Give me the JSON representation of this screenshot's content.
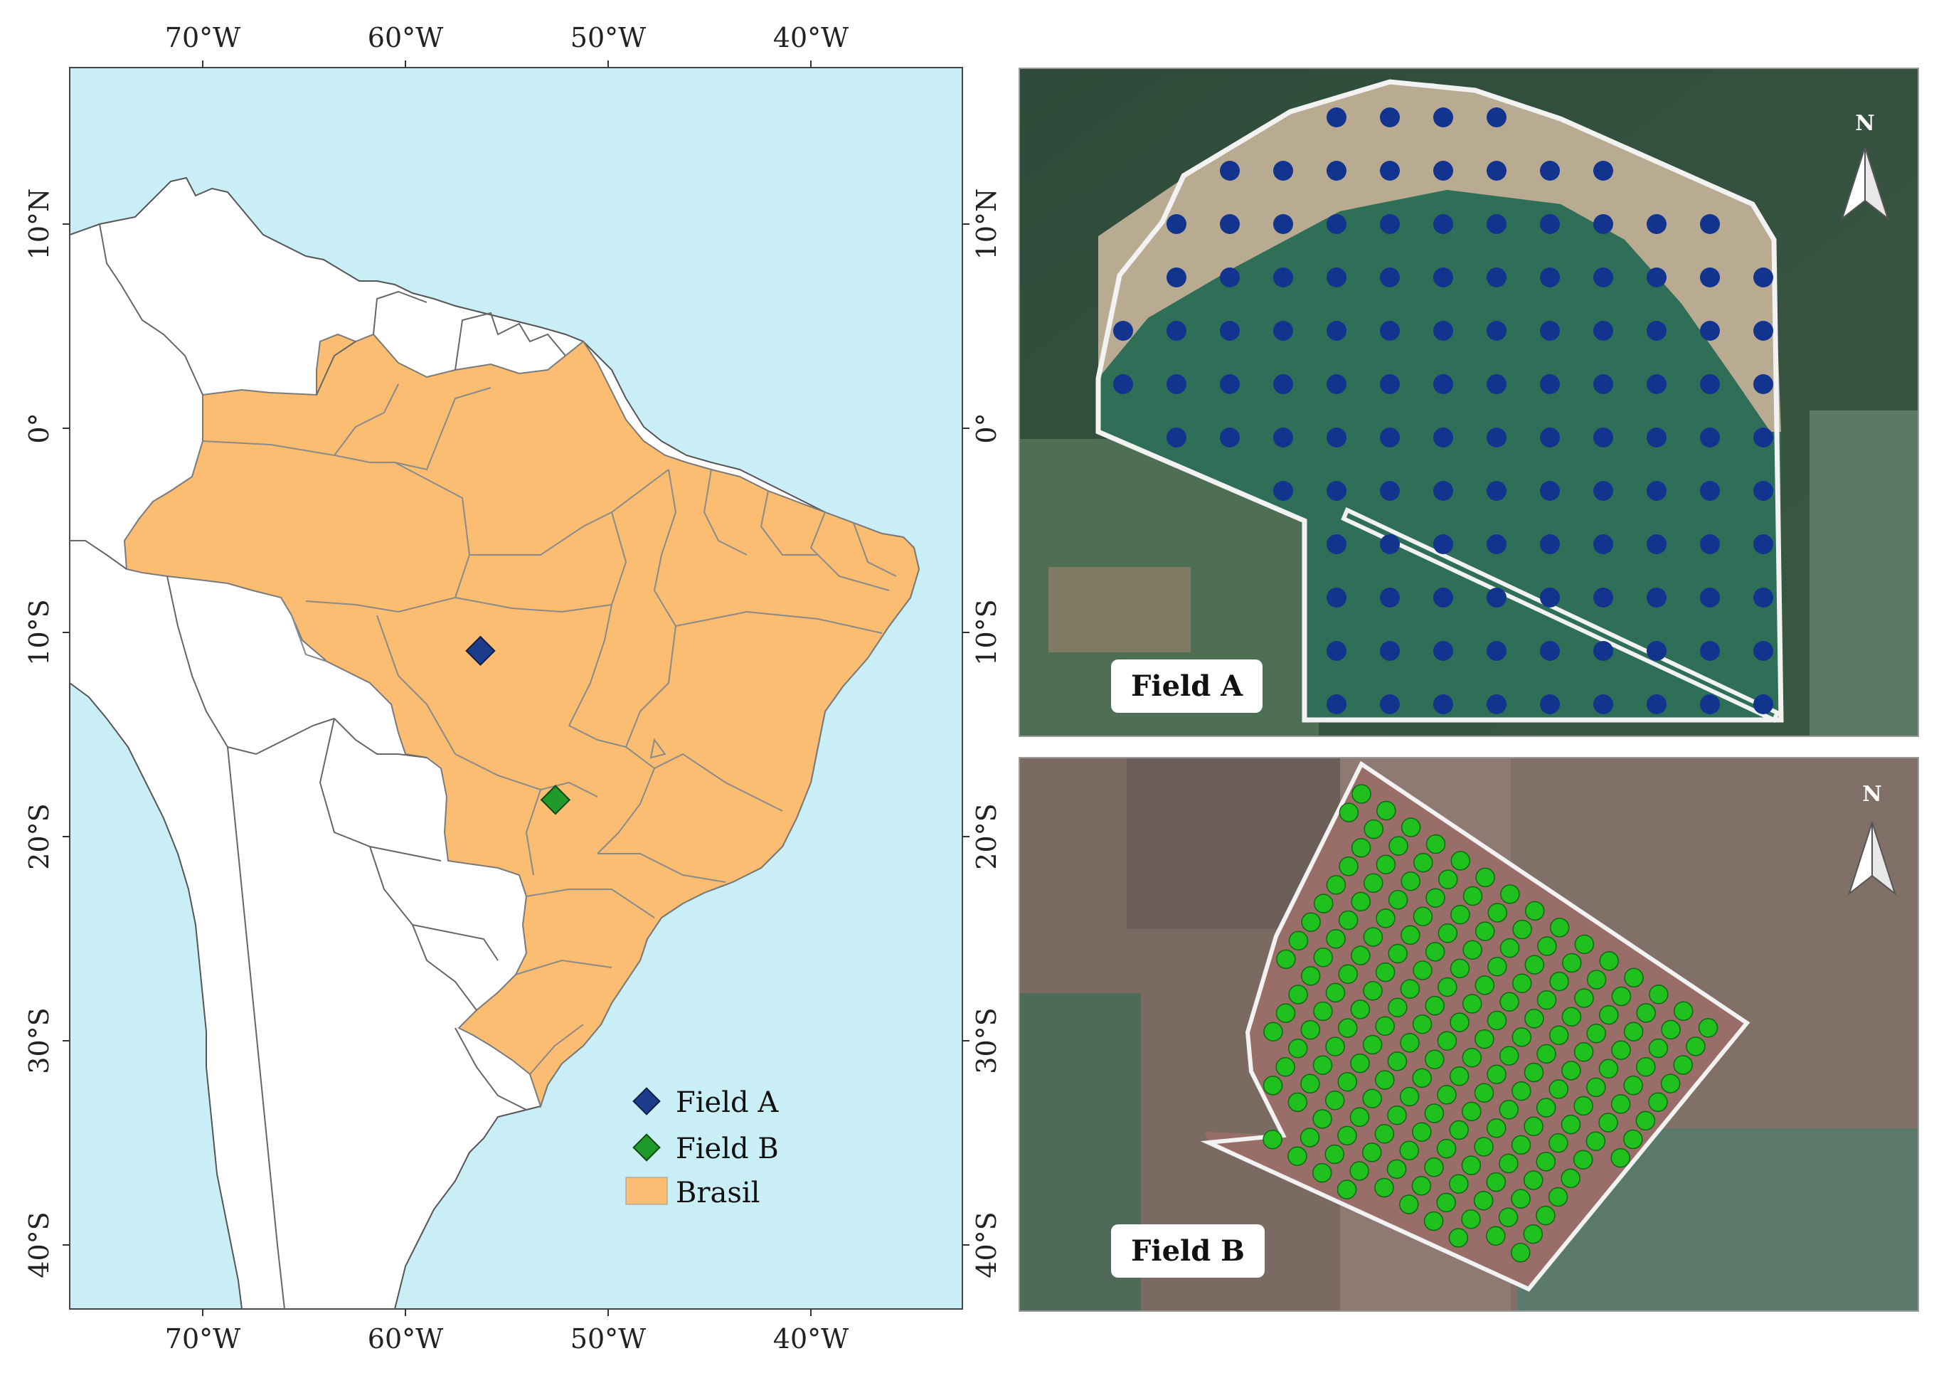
{
  "map": {
    "lon_ticks": [
      "70°W",
      "60°W",
      "50°W",
      "40°W"
    ],
    "lat_ticks": [
      "10°N",
      "0°",
      "10°S",
      "20°S",
      "30°S",
      "40°S"
    ],
    "colors": {
      "ocean": "#c9eef6",
      "land": "#ffffff",
      "brasil": "#fbbd71",
      "field_a": "#1d3c8c",
      "field_b": "#1f9a2a"
    },
    "legend": [
      {
        "label": "Field A",
        "marker": "diamond",
        "color": "#1d3c8c"
      },
      {
        "label": "Field B",
        "marker": "diamond",
        "color": "#1f9a2a"
      },
      {
        "label": "Brasil",
        "marker": "square",
        "color": "#fbbd71"
      }
    ],
    "field_a_location": {
      "lon": -56.3,
      "lat": -10.9
    },
    "field_b_location": {
      "lon": -52.6,
      "lat": -18.2
    }
  },
  "field_a": {
    "label": "Field A",
    "north_label": "N",
    "point_color": "#12338e"
  },
  "field_b": {
    "label": "Field B",
    "north_label": "N",
    "point_color": "#20c01e"
  }
}
